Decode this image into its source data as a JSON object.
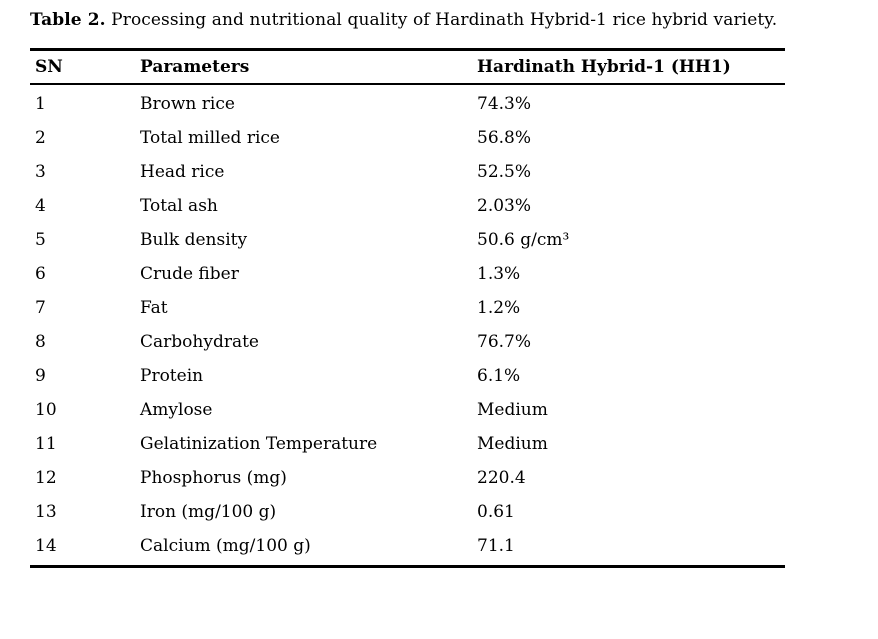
{
  "caption": {
    "label": "Table 2.",
    "text": " Processing and nutritional quality of Hardinath Hybrid-1 rice hybrid variety."
  },
  "table": {
    "headers": {
      "sn": "SN",
      "parameter": "Parameters",
      "value": "Hardinath Hybrid-1 (HH1)"
    },
    "rows": [
      {
        "sn": "1",
        "parameter": "Brown rice",
        "value": "74.3%"
      },
      {
        "sn": "2",
        "parameter": "Total milled rice",
        "value": "56.8%"
      },
      {
        "sn": "3",
        "parameter": "Head rice",
        "value": "52.5%"
      },
      {
        "sn": "4",
        "parameter": "Total ash",
        "value": "2.03%"
      },
      {
        "sn": "5",
        "parameter": "Bulk density",
        "value": "50.6 g/cm³"
      },
      {
        "sn": "6",
        "parameter": "Crude fiber",
        "value": "1.3%"
      },
      {
        "sn": "7",
        "parameter": "Fat",
        "value": "1.2%"
      },
      {
        "sn": "8",
        "parameter": "Carbohydrate",
        "value": "76.7%"
      },
      {
        "sn": "9",
        "parameter": "Protein",
        "value": "6.1%"
      },
      {
        "sn": "10",
        "parameter": "Amylose",
        "value": "Medium"
      },
      {
        "sn": "11",
        "parameter": "Gelatinization Temperature",
        "value": "Medium"
      },
      {
        "sn": "12",
        "parameter": "Phosphorus (mg)",
        "value": "220.4"
      },
      {
        "sn": "13",
        "parameter": "Iron (mg/100 g)",
        "value": "0.61"
      },
      {
        "sn": "14",
        "parameter": "Calcium (mg/100 g)",
        "value": "71.1"
      }
    ]
  },
  "colors": {
    "text": "#000000",
    "background": "#ffffff",
    "rule": "#000000"
  }
}
